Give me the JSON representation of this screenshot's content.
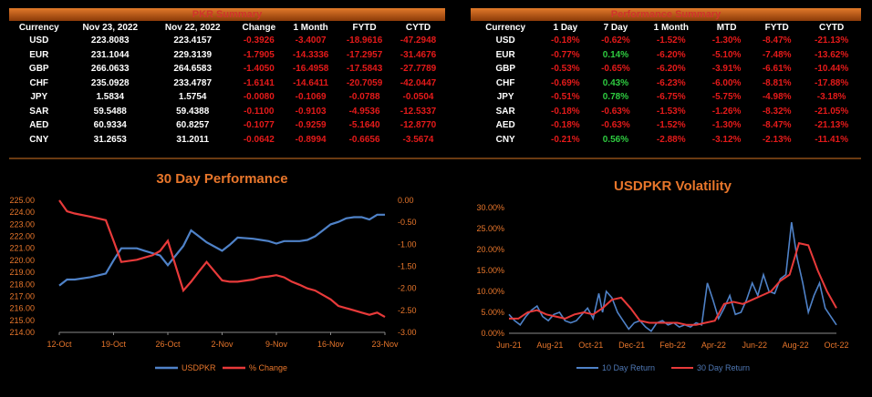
{
  "pkr_summary": {
    "title": "PKR Summary",
    "headers": [
      "Currency",
      "Nov 23, 2022",
      "Nov 22, 2022",
      "Change",
      "1 Month",
      "FYTD",
      "CYTD"
    ],
    "rows": [
      [
        "USD",
        "223.8083",
        "223.4157",
        "-0.3926",
        "-3.4007",
        "-18.9616",
        "-47.2948"
      ],
      [
        "EUR",
        "231.1044",
        "229.3139",
        "-1.7905",
        "-14.3336",
        "-17.2957",
        "-31.4676"
      ],
      [
        "GBP",
        "266.0633",
        "264.6583",
        "-1.4050",
        "-16.4958",
        "-17.5843",
        "-27.7789"
      ],
      [
        "CHF",
        "235.0928",
        "233.4787",
        "-1.6141",
        "-14.6411",
        "-20.7059",
        "-42.0447"
      ],
      [
        "JPY",
        "1.5834",
        "1.5754",
        "-0.0080",
        "-0.1069",
        "-0.0788",
        "-0.0504"
      ],
      [
        "SAR",
        "59.5488",
        "59.4388",
        "-0.1100",
        "-0.9103",
        "-4.9536",
        "-12.5337"
      ],
      [
        "AED",
        "60.9334",
        "60.8257",
        "-0.1077",
        "-0.9259",
        "-5.1640",
        "-12.8770"
      ],
      [
        "CNY",
        "31.2653",
        "31.2011",
        "-0.0642",
        "-0.8994",
        "-0.6656",
        "-3.5674"
      ]
    ]
  },
  "performance_summary": {
    "title": "Performance Summary",
    "headers": [
      "Currency",
      "1 Day",
      "7 Day",
      "1 Month",
      "MTD",
      "FYTD",
      "CYTD"
    ],
    "rows": [
      [
        "USD",
        "-0.18%",
        "-0.62%",
        "-1.52%",
        "-1.30%",
        "-8.47%",
        "-21.13%"
      ],
      [
        "EUR",
        "-0.77%",
        "0.14%",
        "-6.20%",
        "-5.10%",
        "-7.48%",
        "-13.62%"
      ],
      [
        "GBP",
        "-0.53%",
        "-0.65%",
        "-6.20%",
        "-3.91%",
        "-6.61%",
        "-10.44%"
      ],
      [
        "CHF",
        "-0.69%",
        "0.43%",
        "-6.23%",
        "-6.00%",
        "-8.81%",
        "-17.88%"
      ],
      [
        "JPY",
        "-0.51%",
        "0.78%",
        "-6.75%",
        "-5.75%",
        "-4.98%",
        "-3.18%"
      ],
      [
        "SAR",
        "-0.18%",
        "-0.63%",
        "-1.53%",
        "-1.26%",
        "-8.32%",
        "-21.05%"
      ],
      [
        "AED",
        "-0.18%",
        "-0.63%",
        "-1.52%",
        "-1.30%",
        "-8.47%",
        "-21.13%"
      ],
      [
        "CNY",
        "-0.21%",
        "0.56%",
        "-2.88%",
        "-3.12%",
        "-2.13%",
        "-11.41%"
      ]
    ]
  },
  "colors": {
    "accent": "#e8762b",
    "negative": "#e51a1a",
    "positive": "#2ecc40",
    "series_blue": "#4f82c8",
    "series_red": "#e83a3a"
  },
  "chart_data": [
    {
      "type": "line",
      "title": "30 Day Performance",
      "xlabel": "",
      "ylabel": "",
      "x_ticks": [
        "12-Oct",
        "19-Oct",
        "26-Oct",
        "2-Nov",
        "9-Nov",
        "16-Nov",
        "23-Nov"
      ],
      "y_left_ticks": [
        "225.00",
        "224.00",
        "223.00",
        "222.00",
        "221.00",
        "220.00",
        "219.00",
        "218.00",
        "217.00",
        "216.00",
        "215.00",
        "214.00"
      ],
      "y_right_ticks": [
        "0.00",
        "-0.50",
        "-1.00",
        "-1.50",
        "-2.00",
        "-2.50",
        "-3.00"
      ],
      "ylim_left": [
        214,
        225
      ],
      "ylim_right": [
        -3.0,
        0.0
      ],
      "x_range": [
        0,
        42
      ],
      "series": [
        {
          "name": "USDPKR",
          "axis": "left",
          "x": [
            0,
            1,
            2,
            4,
            6,
            7,
            8,
            10,
            11,
            12,
            13,
            14,
            16,
            17,
            18,
            19,
            21,
            22,
            23,
            25,
            26,
            27,
            28,
            29,
            30,
            31,
            32,
            33,
            34,
            35,
            36,
            37,
            38,
            39,
            40,
            41,
            42
          ],
          "values": [
            217.9,
            218.4,
            218.4,
            218.6,
            218.9,
            220.0,
            221.0,
            221.0,
            220.8,
            220.6,
            220.4,
            219.6,
            221.2,
            222.5,
            222.0,
            221.5,
            220.8,
            221.3,
            221.9,
            221.8,
            221.7,
            221.6,
            221.4,
            221.6,
            221.6,
            221.6,
            221.7,
            222.0,
            222.5,
            223.0,
            223.2,
            223.5,
            223.6,
            223.6,
            223.4,
            223.8,
            223.8
          ]
        },
        {
          "name": "% Change",
          "axis": "right",
          "x": [
            0,
            1,
            2,
            4,
            6,
            7,
            8,
            10,
            11,
            12,
            13,
            14,
            16,
            17,
            18,
            19,
            21,
            22,
            23,
            25,
            26,
            27,
            28,
            29,
            30,
            31,
            32,
            33,
            34,
            35,
            36,
            37,
            38,
            39,
            40,
            41,
            42
          ],
          "values": [
            0.0,
            -0.25,
            -0.3,
            -0.37,
            -0.45,
            -0.92,
            -1.4,
            -1.35,
            -1.3,
            -1.25,
            -1.15,
            -0.92,
            -2.05,
            -1.85,
            -1.62,
            -1.4,
            -1.82,
            -1.85,
            -1.85,
            -1.8,
            -1.75,
            -1.73,
            -1.7,
            -1.75,
            -1.85,
            -1.92,
            -2.0,
            -2.05,
            -2.15,
            -2.25,
            -2.4,
            -2.45,
            -2.5,
            -2.55,
            -2.6,
            -2.55,
            -2.65
          ]
        }
      ],
      "legend": [
        "USDPKR",
        "% Change"
      ],
      "legend_position": "bottom",
      "grid": false
    },
    {
      "type": "line",
      "title": "USDPKR Volatility",
      "xlabel": "",
      "ylabel": "",
      "x_ticks": [
        "Jun-21",
        "Aug-21",
        "Oct-21",
        "Dec-21",
        "Feb-22",
        "Apr-22",
        "Jun-22",
        "Aug-22",
        "Oct-22"
      ],
      "y_ticks": [
        "30.00%",
        "25.00%",
        "20.00%",
        "15.00%",
        "10.00%",
        "5.00%",
        "0.00%"
      ],
      "ylim": [
        0,
        30
      ],
      "x_range": [
        0,
        17.5
      ],
      "series": [
        {
          "name": "10 Day Return",
          "x": [
            0,
            0.3,
            0.6,
            0.9,
            1.2,
            1.5,
            1.8,
            2.1,
            2.4,
            2.7,
            3.0,
            3.3,
            3.6,
            3.9,
            4.2,
            4.5,
            4.8,
            5.0,
            5.2,
            5.5,
            5.8,
            6.1,
            6.4,
            6.7,
            7.0,
            7.3,
            7.6,
            7.9,
            8.2,
            8.5,
            8.8,
            9.1,
            9.4,
            9.7,
            10.0,
            10.3,
            10.6,
            10.9,
            11.2,
            11.5,
            11.8,
            12.1,
            12.4,
            12.7,
            13.0,
            13.3,
            13.6,
            13.9,
            14.2,
            14.5,
            14.8,
            15.1,
            15.4,
            15.7,
            16.0,
            16.3,
            16.6,
            16.9,
            17.2,
            17.5
          ],
          "values": [
            4.5,
            3.0,
            2.0,
            4.0,
            5.5,
            6.5,
            4.0,
            3.0,
            4.5,
            5.0,
            3.0,
            2.5,
            3.0,
            4.5,
            6.0,
            3.5,
            9.5,
            5.0,
            10.0,
            8.5,
            5.0,
            3.0,
            1.0,
            2.5,
            3.0,
            1.5,
            0.5,
            2.5,
            3.0,
            2.0,
            2.5,
            1.5,
            2.0,
            1.5,
            2.5,
            2.0,
            12.0,
            8.0,
            3.5,
            6.0,
            9.0,
            4.5,
            5.0,
            8.0,
            12.0,
            9.0,
            14.0,
            10.0,
            9.5,
            13.0,
            14.0,
            26.5,
            18.0,
            12.0,
            5.0,
            9.0,
            12.0,
            6.0,
            4.0,
            2.0
          ]
        },
        {
          "name": "30 Day Return",
          "x": [
            0,
            0.5,
            1.0,
            1.5,
            2.0,
            2.5,
            3.0,
            3.5,
            4.0,
            4.5,
            5.0,
            5.5,
            6.0,
            6.5,
            7.0,
            7.5,
            8.0,
            8.5,
            9.0,
            9.5,
            10.0,
            10.5,
            11.0,
            11.5,
            12.0,
            12.5,
            13.0,
            13.5,
            14.0,
            14.5,
            15.0,
            15.5,
            16.0,
            16.5,
            17.0,
            17.5
          ],
          "values": [
            3.5,
            3.5,
            5.0,
            5.5,
            4.5,
            4.0,
            3.5,
            4.5,
            5.0,
            4.5,
            6.0,
            8.0,
            8.5,
            6.0,
            3.0,
            2.5,
            2.5,
            2.5,
            2.5,
            2.0,
            2.0,
            2.5,
            3.0,
            7.0,
            7.5,
            7.0,
            8.0,
            9.0,
            10.0,
            12.5,
            14.0,
            21.5,
            21.0,
            15.0,
            10.0,
            6.0
          ]
        }
      ],
      "legend": [
        "10 Day Return",
        "30 Day Return"
      ],
      "legend_position": "bottom",
      "grid": false
    }
  ]
}
